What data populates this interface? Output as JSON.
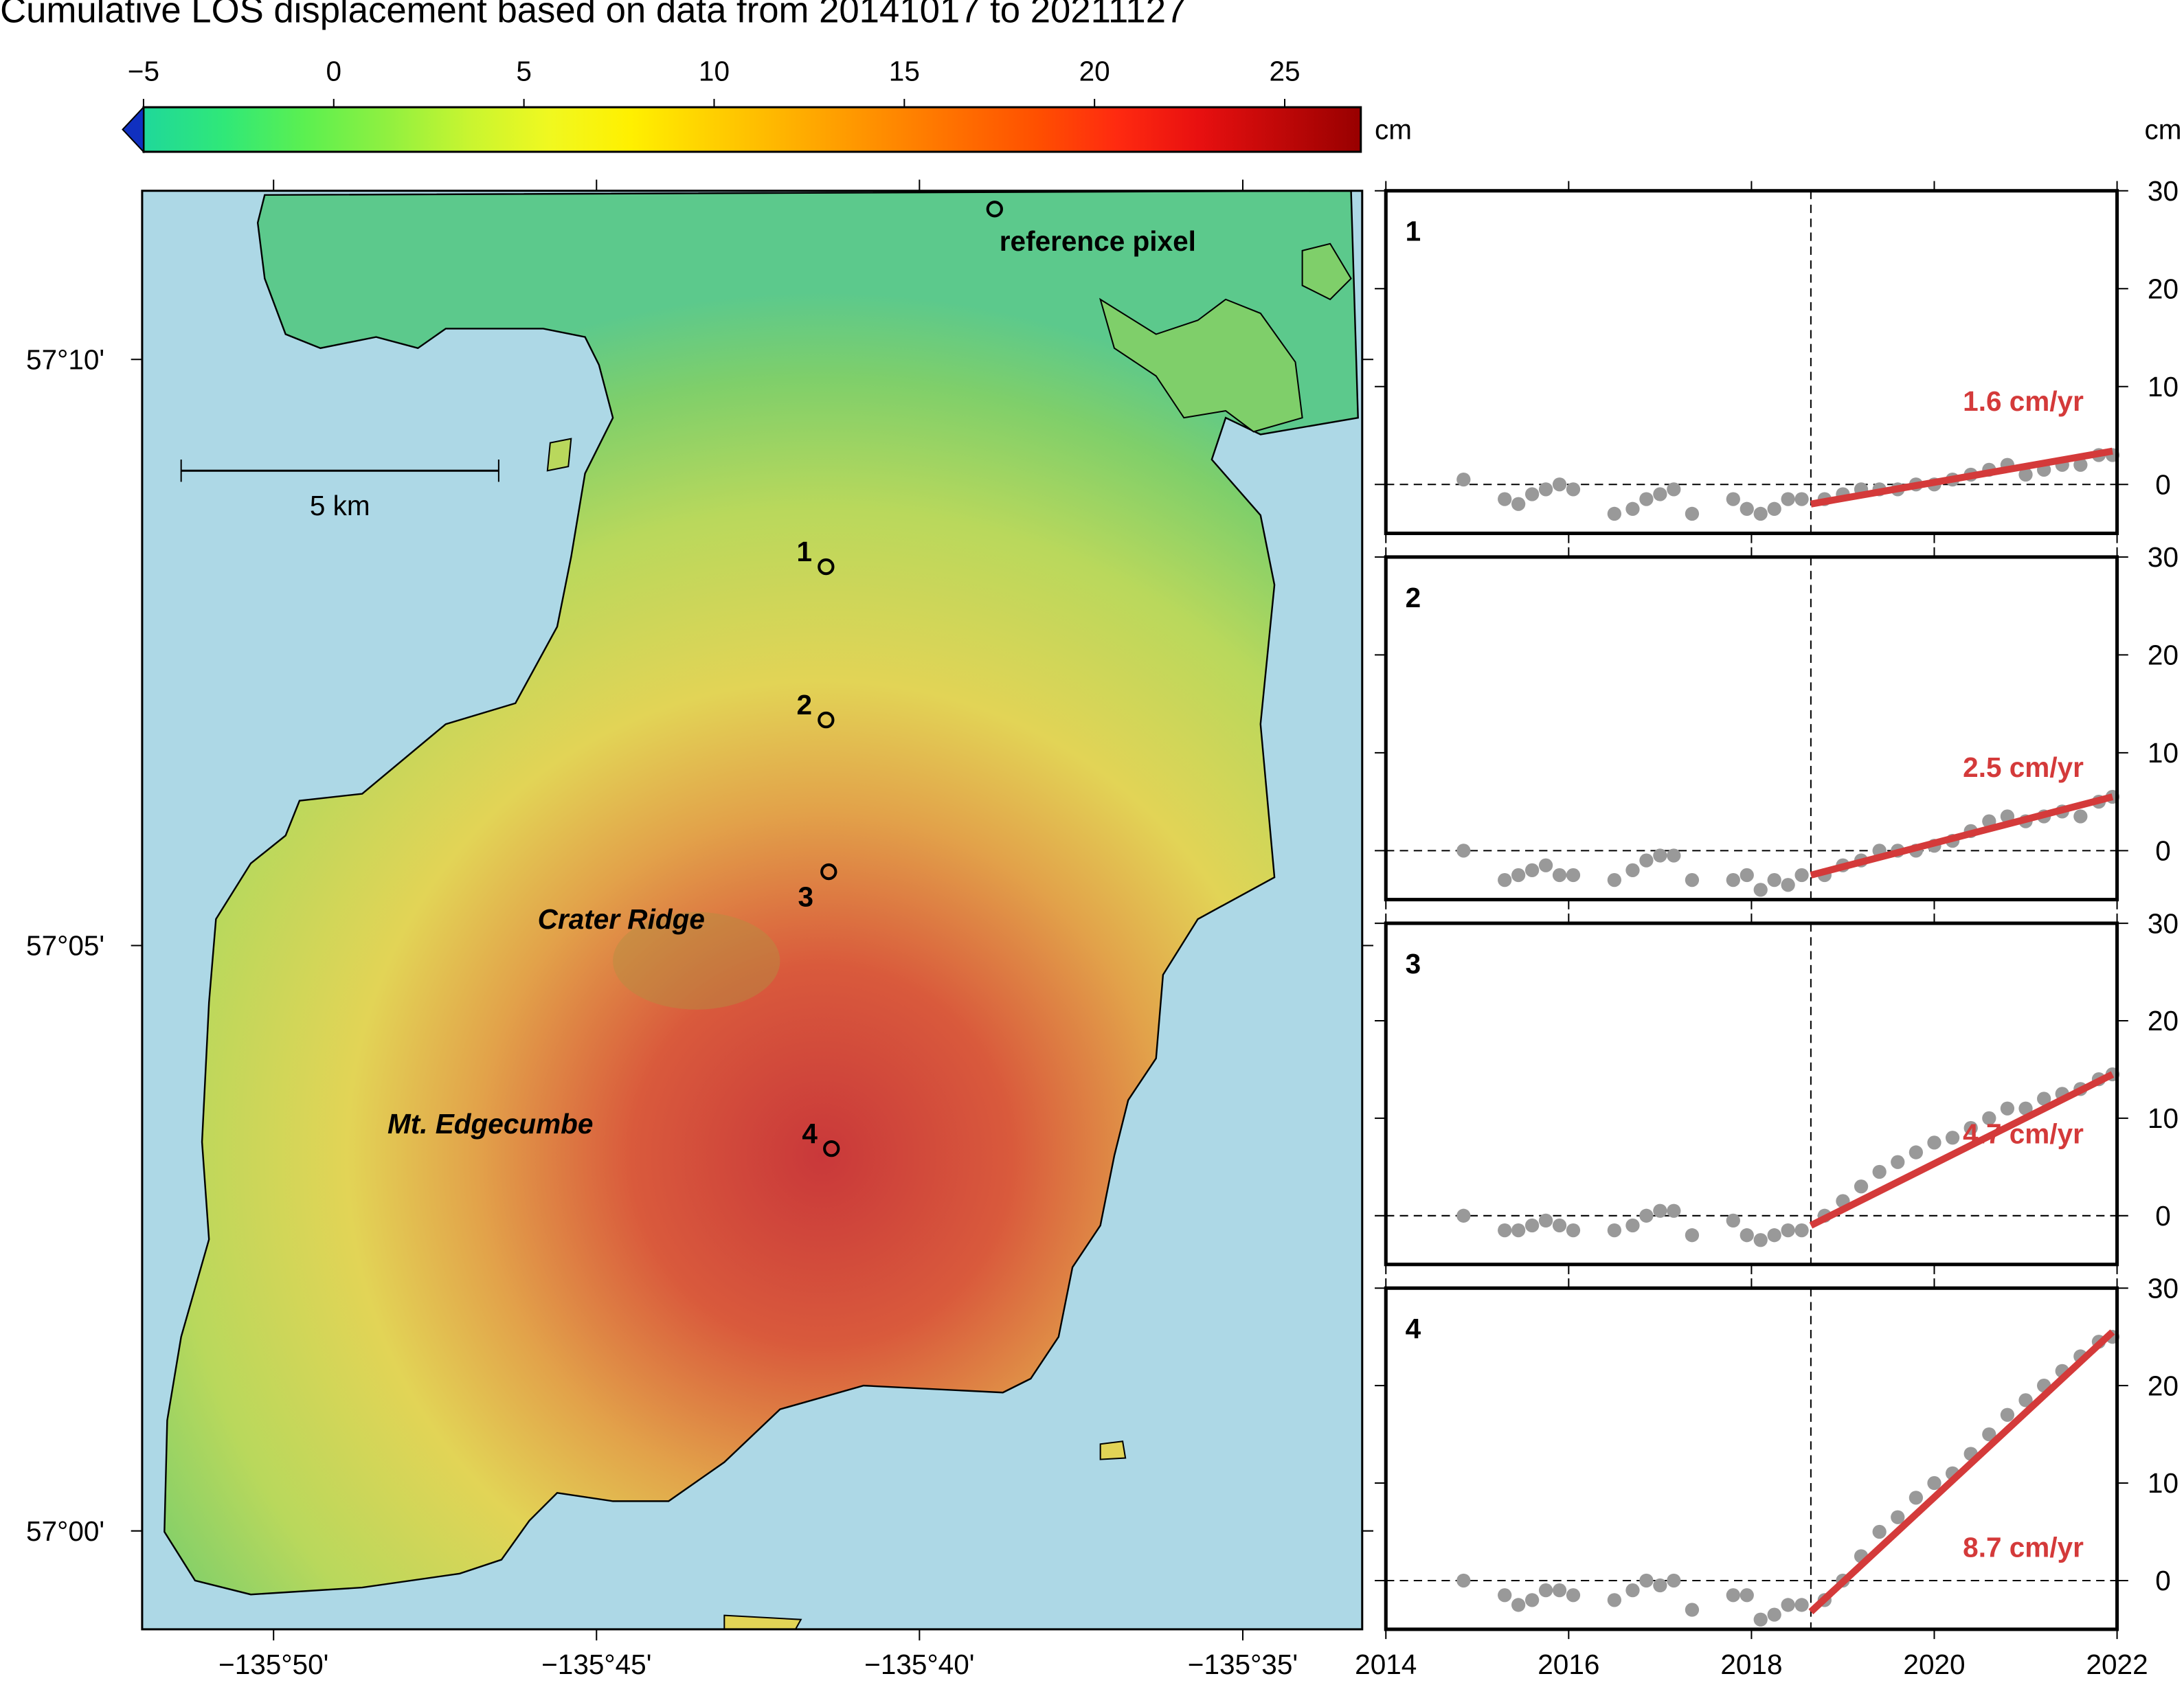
{
  "title": "Cumulative LOS displacement based on data from 20141017 to 20211127",
  "colorbar": {
    "unit": "cm",
    "lim": [
      -5,
      27
    ],
    "ticks": [
      {
        "value": -5,
        "label": "−5"
      },
      0,
      5,
      10,
      15,
      20,
      25
    ],
    "colors": [
      "#1fd89a",
      "#30e878",
      "#5cf050",
      "#90f040",
      "#c8f530",
      "#f0f820",
      "#fff000",
      "#ffd000",
      "#ffb000",
      "#ff9000",
      "#ff7000",
      "#ff5000",
      "#ff2a10",
      "#e81010",
      "#c00808",
      "#980000"
    ],
    "under_color": "#1030c0"
  },
  "map": {
    "xlim": [
      -135.8672,
      -135.5525
    ],
    "ylim": [
      56.986,
      57.1907
    ],
    "xticks": [
      {
        "value": -135.8333,
        "label": "−135°50'"
      },
      {
        "value": -135.75,
        "label": "−135°45'"
      },
      {
        "value": -135.6667,
        "label": "−135°40'"
      },
      {
        "value": -135.5833,
        "label": "−135°35'"
      }
    ],
    "yticks": [
      {
        "value": 57.0,
        "label": "57°00'"
      },
      {
        "value": 57.0833,
        "label": "57°05'"
      },
      {
        "value": 57.1667,
        "label": "57°10'"
      }
    ],
    "sites": [
      {
        "label": "1",
        "lon": -135.6908,
        "lat": 57.1372
      },
      {
        "label": "2",
        "lon": -135.6908,
        "lat": 57.1154
      },
      {
        "label": "3",
        "lon": -135.6901,
        "lat": 57.0938
      },
      {
        "label": "4",
        "lon": -135.6894,
        "lat": 57.0544
      }
    ],
    "reference": {
      "label": "reference pixel",
      "lon": -135.6473,
      "lat": 57.1881
    },
    "places": [
      "Crater Ridge",
      "Mt. Edgecumbe"
    ],
    "scale_label": "5 km"
  },
  "chart_data": [
    {
      "type": "scatter",
      "label": "1",
      "ylabel": "cm",
      "annotation": "1.6 cm/yr",
      "annotation_position": "upper right",
      "xlim": [
        2014,
        2022
      ],
      "xticks": [
        2014,
        2016,
        2018,
        2020,
        2022
      ],
      "ylim": [
        -5,
        30
      ],
      "yticks": [
        0,
        10,
        20,
        30
      ],
      "hline": 0,
      "vline": 2018.65,
      "color": "#999999",
      "trend_color": "#d43a3a",
      "x": [
        2014.85,
        2015.3,
        2015.45,
        2015.6,
        2015.75,
        2015.9,
        2016.05,
        2016.5,
        2016.7,
        2016.85,
        2017.0,
        2017.15,
        2017.35,
        2017.8,
        2017.95,
        2018.1,
        2018.25,
        2018.4,
        2018.55,
        2018.8,
        2019.0,
        2019.2,
        2019.4,
        2019.6,
        2019.8,
        2020.0,
        2020.2,
        2020.4,
        2020.6,
        2020.8,
        2021.0,
        2021.2,
        2021.4,
        2021.6,
        2021.8,
        2021.95
      ],
      "values": [
        0.5,
        -1.5,
        -2,
        -1,
        -0.5,
        0,
        -0.5,
        -3,
        -2.5,
        -1.5,
        -1,
        -0.5,
        -3,
        -1.5,
        -2.5,
        -3,
        -2.5,
        -1.5,
        -1.5,
        -1.5,
        -1,
        -0.5,
        -0.5,
        -0.5,
        0,
        0,
        0.5,
        1,
        1.5,
        2,
        1,
        1.5,
        2,
        2,
        3,
        3
      ],
      "trend": {
        "x": [
          2018.65,
          2021.95
        ],
        "y": [
          -2,
          3.4
        ]
      }
    },
    {
      "type": "scatter",
      "label": "2",
      "annotation": "2.5 cm/yr",
      "annotation_position": "upper right",
      "xlim": [
        2014,
        2022
      ],
      "xticks": [
        2014,
        2016,
        2018,
        2020,
        2022
      ],
      "ylim": [
        -5,
        30
      ],
      "yticks": [
        0,
        10,
        20,
        30
      ],
      "hline": 0,
      "vline": 2018.65,
      "color": "#999999",
      "trend_color": "#d43a3a",
      "x": [
        2014.85,
        2015.3,
        2015.45,
        2015.6,
        2015.75,
        2015.9,
        2016.05,
        2016.5,
        2016.7,
        2016.85,
        2017.0,
        2017.15,
        2017.35,
        2017.8,
        2017.95,
        2018.1,
        2018.25,
        2018.4,
        2018.55,
        2018.8,
        2019.0,
        2019.2,
        2019.4,
        2019.6,
        2019.8,
        2020.0,
        2020.2,
        2020.4,
        2020.6,
        2020.8,
        2021.0,
        2021.2,
        2021.4,
        2021.6,
        2021.8,
        2021.95
      ],
      "values": [
        0,
        -3,
        -2.5,
        -2,
        -1.5,
        -2.5,
        -2.5,
        -3,
        -2,
        -1,
        -0.5,
        -0.5,
        -3,
        -3,
        -2.5,
        -4,
        -3,
        -3.5,
        -2.5,
        -2.5,
        -1.5,
        -1,
        0,
        0,
        0,
        0.5,
        1,
        2,
        3,
        3.5,
        3,
        3.5,
        4,
        3.5,
        5,
        5.5
      ],
      "trend": {
        "x": [
          2018.65,
          2021.95
        ],
        "y": [
          -2.5,
          5.5
        ]
      }
    },
    {
      "type": "scatter",
      "label": "3",
      "annotation": "4.7 cm/yr",
      "annotation_position": "upper right",
      "xlim": [
        2014,
        2022
      ],
      "xticks": [
        2014,
        2016,
        2018,
        2020,
        2022
      ],
      "ylim": [
        -5,
        30
      ],
      "yticks": [
        0,
        10,
        20,
        30
      ],
      "hline": 0,
      "vline": 2018.65,
      "color": "#999999",
      "trend_color": "#d43a3a",
      "x": [
        2014.85,
        2015.3,
        2015.45,
        2015.6,
        2015.75,
        2015.9,
        2016.05,
        2016.5,
        2016.7,
        2016.85,
        2017.0,
        2017.15,
        2017.35,
        2017.8,
        2017.95,
        2018.1,
        2018.25,
        2018.4,
        2018.55,
        2018.8,
        2019.0,
        2019.2,
        2019.4,
        2019.6,
        2019.8,
        2020.0,
        2020.2,
        2020.4,
        2020.6,
        2020.8,
        2021.0,
        2021.2,
        2021.4,
        2021.6,
        2021.8,
        2021.95
      ],
      "values": [
        0,
        -1.5,
        -1.5,
        -1,
        -0.5,
        -1,
        -1.5,
        -1.5,
        -1,
        0,
        0.5,
        0.5,
        -2,
        -0.5,
        -2,
        -2.5,
        -2,
        -1.5,
        -1.5,
        0,
        1.5,
        3,
        4.5,
        5.5,
        6.5,
        7.5,
        8,
        9,
        10,
        11,
        11,
        12,
        12.5,
        13,
        14,
        14.5
      ],
      "trend": {
        "x": [
          2018.65,
          2021.95
        ],
        "y": [
          -1,
          14.5
        ]
      }
    },
    {
      "type": "scatter",
      "label": "4",
      "annotation": "8.7 cm/yr",
      "annotation_position": "lower right",
      "xlim": [
        2014,
        2022
      ],
      "xticks": [
        2014,
        2016,
        2018,
        2020,
        2022
      ],
      "ylim": [
        -5,
        30
      ],
      "yticks": [
        0,
        10,
        20,
        30
      ],
      "hline": 0,
      "vline": 2018.65,
      "color": "#999999",
      "trend_color": "#d43a3a",
      "x": [
        2014.85,
        2015.3,
        2015.45,
        2015.6,
        2015.75,
        2015.9,
        2016.05,
        2016.5,
        2016.7,
        2016.85,
        2017.0,
        2017.15,
        2017.35,
        2017.8,
        2017.95,
        2018.1,
        2018.25,
        2018.4,
        2018.55,
        2018.8,
        2019.0,
        2019.2,
        2019.4,
        2019.6,
        2019.8,
        2020.0,
        2020.2,
        2020.4,
        2020.6,
        2020.8,
        2021.0,
        2021.2,
        2021.4,
        2021.6,
        2021.8,
        2021.95
      ],
      "values": [
        0,
        -1.5,
        -2.5,
        -2,
        -1,
        -1,
        -1.5,
        -2,
        -1,
        0,
        -0.5,
        0,
        -3,
        -1.5,
        -1.5,
        -4,
        -3.5,
        -2.5,
        -2.5,
        -2,
        0,
        2.5,
        5,
        6.5,
        8.5,
        10,
        11,
        13,
        15,
        17,
        18.5,
        20,
        21.5,
        23,
        24.5,
        25
      ],
      "trend": {
        "x": [
          2018.65,
          2021.95
        ],
        "y": [
          -3.2,
          25.5
        ]
      }
    }
  ]
}
